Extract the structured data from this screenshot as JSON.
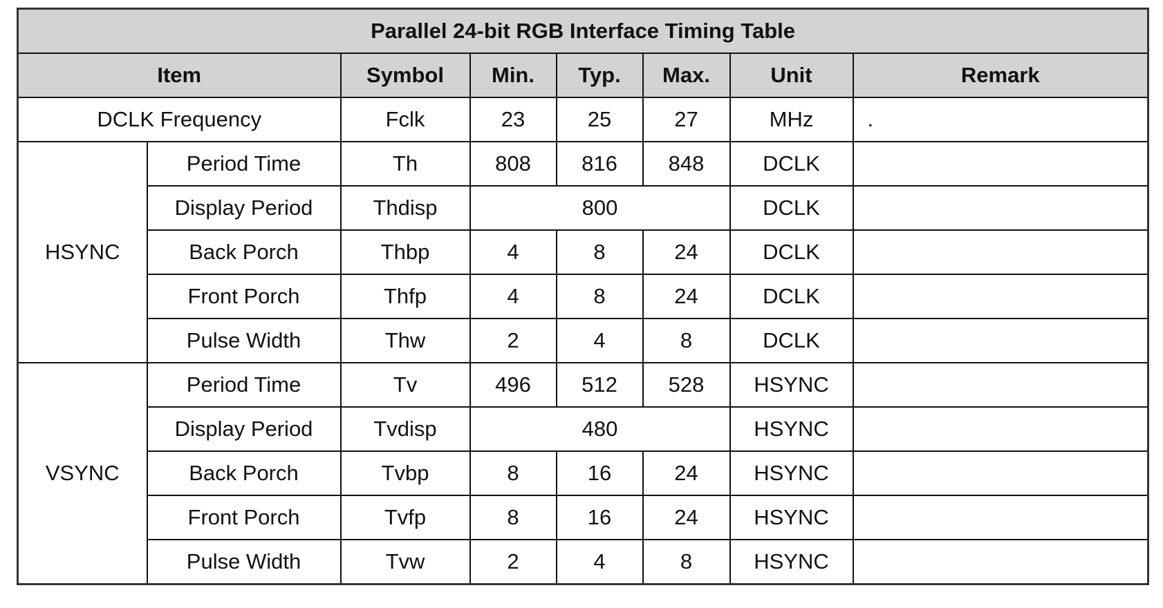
{
  "table": {
    "title": "Parallel 24-bit RGB Interface Timing Table",
    "header": [
      "Item",
      "Symbol",
      "Min.",
      "Typ.",
      "Max.",
      "Unit",
      "Remark"
    ],
    "rows": [
      {
        "item": "DCLK Frequency",
        "symbol": "Fclk",
        "min": 23,
        "typ": 25,
        "max": 27,
        "unit": "MHz",
        "remark": "."
      }
    ],
    "groups": [
      {
        "name": "HSYNC",
        "rows": [
          {
            "item": "Period Time",
            "symbol": "Th",
            "min": 808,
            "typ": 816,
            "max": 848,
            "unit": "DCLK"
          },
          {
            "item": "Display Period",
            "symbol": "Thdisp",
            "typ": 800,
            "unit": "DCLK"
          },
          {
            "item": "Back Porch",
            "symbol": "Thbp",
            "min": 4,
            "typ": 8,
            "max": 24,
            "unit": "DCLK"
          },
          {
            "item": "Front Porch",
            "symbol": "Thfp",
            "min": 4,
            "typ": 8,
            "max": 24,
            "unit": "DCLK"
          },
          {
            "item": "Pulse Width",
            "symbol": "Thw",
            "min": 2,
            "typ": 4,
            "max": 8,
            "unit": "DCLK"
          }
        ]
      },
      {
        "name": "VSYNC",
        "rows": [
          {
            "item": "Period Time",
            "symbol": "Tv",
            "min": 496,
            "typ": 512,
            "max": 528,
            "unit": "HSYNC"
          },
          {
            "item": "Display Period",
            "symbol": "Tvdisp",
            "typ": 480,
            "unit": "HSYNC"
          },
          {
            "item": "Back Porch",
            "symbol": "Tvbp",
            "min": 8,
            "typ": 16,
            "max": 24,
            "unit": "HSYNC"
          },
          {
            "item": "Front Porch",
            "symbol": "Tvfp",
            "min": 8,
            "typ": 16,
            "max": 24,
            "unit": "HSYNC"
          },
          {
            "item": "Pulse Width",
            "symbol": "Tvw",
            "min": 2,
            "typ": 4,
            "max": 8,
            "unit": "HSYNC"
          }
        ]
      }
    ]
  }
}
